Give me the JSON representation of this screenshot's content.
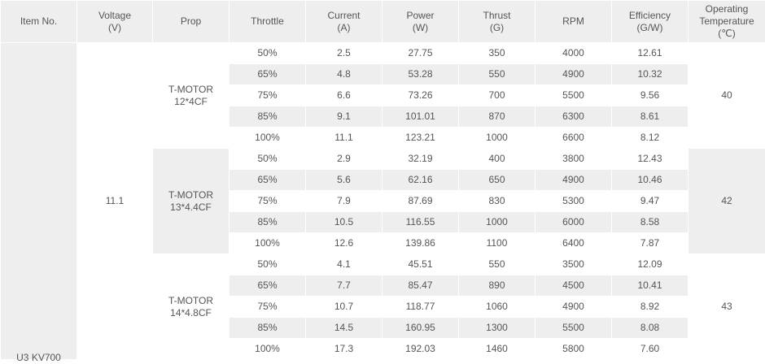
{
  "headers": [
    {
      "key": "item",
      "line1": "Item No.",
      "line2": ""
    },
    {
      "key": "voltage",
      "line1": "Voltage",
      "line2": "(V)"
    },
    {
      "key": "prop",
      "line1": "Prop",
      "line2": ""
    },
    {
      "key": "throttle",
      "line1": "Throttle",
      "line2": ""
    },
    {
      "key": "current",
      "line1": "Current",
      "line2": "(A)"
    },
    {
      "key": "power",
      "line1": "Power",
      "line2": "(W)"
    },
    {
      "key": "thrust",
      "line1": "Thrust",
      "line2": "(G)"
    },
    {
      "key": "rpm",
      "line1": "RPM",
      "line2": ""
    },
    {
      "key": "efficiency",
      "line1": "Efficiency",
      "line2": "(G/W)"
    },
    {
      "key": "temp",
      "line1": "Operating",
      "line2": "Temperature",
      "line3": "(℃)"
    }
  ],
  "item_no": "U3 KV700",
  "voltage": "11.1",
  "groups": [
    {
      "prop_line1": "T-MOTOR",
      "prop_line2": "12*4CF",
      "temperature": "40",
      "rows": [
        {
          "throttle": "50%",
          "current": "2.5",
          "power": "27.75",
          "thrust": "350",
          "rpm": "4000",
          "efficiency": "12.61"
        },
        {
          "throttle": "65%",
          "current": "4.8",
          "power": "53.28",
          "thrust": "550",
          "rpm": "4900",
          "efficiency": "10.32"
        },
        {
          "throttle": "75%",
          "current": "6.6",
          "power": "73.26",
          "thrust": "700",
          "rpm": "5500",
          "efficiency": "9.56"
        },
        {
          "throttle": "85%",
          "current": "9.1",
          "power": "101.01",
          "thrust": "870",
          "rpm": "6300",
          "efficiency": "8.61"
        },
        {
          "throttle": "100%",
          "current": "11.1",
          "power": "123.21",
          "thrust": "1000",
          "rpm": "6600",
          "efficiency": "8.12"
        }
      ]
    },
    {
      "prop_line1": "T-MOTOR",
      "prop_line2": "13*4.4CF",
      "temperature": "42",
      "rows": [
        {
          "throttle": "50%",
          "current": "2.9",
          "power": "32.19",
          "thrust": "400",
          "rpm": "3800",
          "efficiency": "12.43"
        },
        {
          "throttle": "65%",
          "current": "5.6",
          "power": "62.16",
          "thrust": "650",
          "rpm": "4900",
          "efficiency": "10.46"
        },
        {
          "throttle": "75%",
          "current": "7.9",
          "power": "87.69",
          "thrust": "830",
          "rpm": "5300",
          "efficiency": "9.47"
        },
        {
          "throttle": "85%",
          "current": "10.5",
          "power": "116.55",
          "thrust": "1000",
          "rpm": "6000",
          "efficiency": "8.58"
        },
        {
          "throttle": "100%",
          "current": "12.6",
          "power": "139.86",
          "thrust": "1100",
          "rpm": "6400",
          "efficiency": "7.87"
        }
      ]
    },
    {
      "prop_line1": "T-MOTOR",
      "prop_line2": "14*4.8CF",
      "temperature": "43",
      "rows": [
        {
          "throttle": "50%",
          "current": "4.1",
          "power": "45.51",
          "thrust": "550",
          "rpm": "3500",
          "efficiency": "12.09"
        },
        {
          "throttle": "65%",
          "current": "7.7",
          "power": "85.47",
          "thrust": "890",
          "rpm": "4500",
          "efficiency": "10.41"
        },
        {
          "throttle": "75%",
          "current": "10.7",
          "power": "118.77",
          "thrust": "1060",
          "rpm": "4900",
          "efficiency": "8.92"
        },
        {
          "throttle": "85%",
          "current": "14.5",
          "power": "160.95",
          "thrust": "1300",
          "rpm": "5500",
          "efficiency": "8.08"
        },
        {
          "throttle": "100%",
          "current": "17.3",
          "power": "192.03",
          "thrust": "1460",
          "rpm": "5800",
          "efficiency": "7.60"
        }
      ]
    }
  ]
}
